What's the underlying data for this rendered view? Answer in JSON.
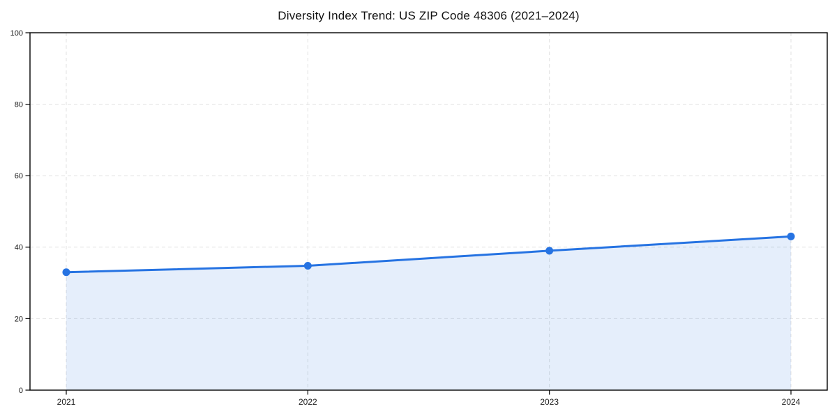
{
  "chart_data": {
    "type": "line",
    "title": "Diversity Index Trend: US ZIP Code 48306 (2021–2024)",
    "categories": [
      "2021",
      "2022",
      "2023",
      "2024"
    ],
    "values": [
      33,
      34.8,
      39,
      43
    ],
    "series": [
      {
        "name": "Diversity Index",
        "values": [
          33,
          34.8,
          39,
          43
        ]
      }
    ],
    "xlabel": "",
    "ylabel": "",
    "ylim": [
      0,
      100
    ],
    "yticks": [
      0,
      20,
      40,
      60,
      80,
      100
    ],
    "grid": "dashed-both-axes",
    "legend_position": "none",
    "area_fill": true,
    "marker": "circle",
    "colors": {
      "line": "#2673e2",
      "marker": "#2673e2",
      "area_fill": "#2673e21f",
      "gridline": "#e1e1e1",
      "axis": "#000000",
      "background": "#ffffff",
      "tick_label": "#1a1a1a",
      "title": "#111111"
    }
  }
}
